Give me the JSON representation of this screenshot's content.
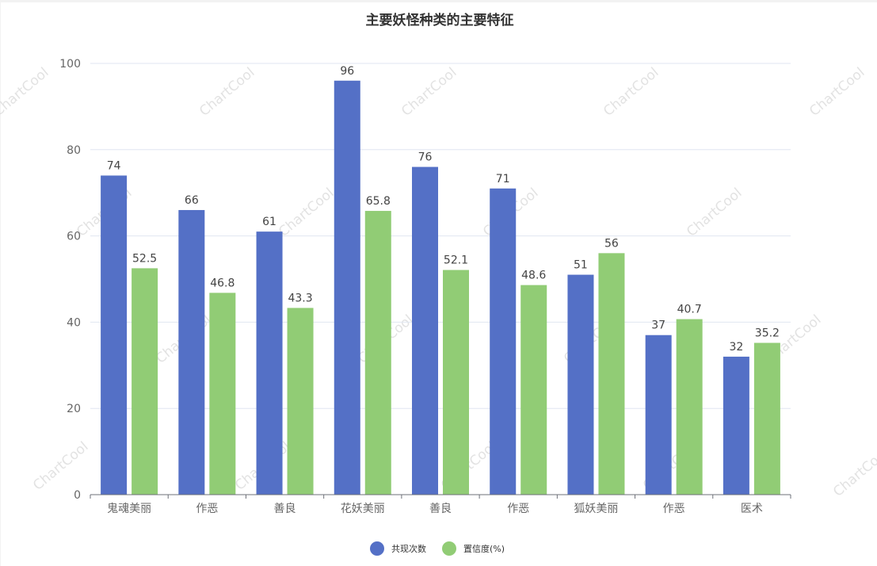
{
  "chart_data": {
    "type": "bar",
    "title": "主要妖怪种类的主要特征",
    "categories": [
      "鬼魂美丽",
      "作恶",
      "善良",
      "花妖美丽",
      "善良",
      "作恶",
      "狐妖美丽",
      "作恶",
      "医术"
    ],
    "series": [
      {
        "name": "共现次数",
        "color": "#5470c6",
        "values": [
          74,
          66,
          61,
          96,
          76,
          71,
          51,
          37,
          32
        ]
      },
      {
        "name": "置信度(%)",
        "color": "#91cc75",
        "values": [
          52.5,
          46.8,
          43.3,
          65.8,
          52.1,
          48.6,
          56,
          40.7,
          35.2
        ]
      }
    ],
    "ylim": [
      0,
      100
    ],
    "yticks": [
      0,
      20,
      40,
      60,
      80,
      100
    ],
    "grid": true,
    "legend_position": "bottom-center",
    "data_labels": true
  },
  "watermark": "ChartCool"
}
